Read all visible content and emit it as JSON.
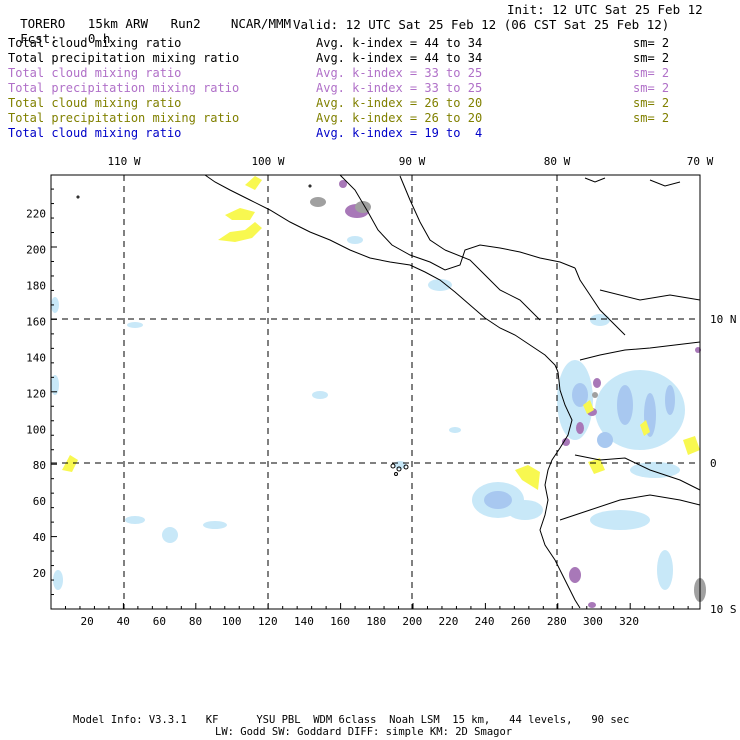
{
  "header": {
    "model": "TORERO",
    "resolution": "15km ARW",
    "run": "Run2",
    "org": "NCAR/MMM",
    "init": "Init: 12 UTC Sat 25 Feb 12",
    "fcst_label": "Fcst:",
    "fcst_value": "0 h",
    "valid": "Valid: 12 UTC Sat 25 Feb 12 (06 CST Sat 25 Feb 12)"
  },
  "legend": [
    {
      "field": "Total cloud mixing ratio",
      "kindex": "Avg. k-index = 44 to 34",
      "sm": "sm= 2",
      "color": "#000000"
    },
    {
      "field": "Total precipitation mixing ratio",
      "kindex": "Avg. k-index = 44 to 34",
      "sm": "sm= 2",
      "color": "#000000"
    },
    {
      "field": "Total cloud mixing ratio",
      "kindex": "Avg. k-index = 33 to 25",
      "sm": "sm= 2",
      "color": "#b070c8"
    },
    {
      "field": "Total precipitation mixing ratio",
      "kindex": "Avg. k-index = 33 to 25",
      "sm": "sm= 2",
      "color": "#b070c8"
    },
    {
      "field": "Total cloud mixing ratio",
      "kindex": "Avg. k-index = 26 to 20",
      "sm": "sm= 2",
      "color": "#808000"
    },
    {
      "field": "Total precipitation mixing ratio",
      "kindex": "Avg. k-index = 26 to 20",
      "sm": "sm= 2",
      "color": "#808000"
    },
    {
      "field": "Total cloud mixing ratio",
      "kindex": "Avg. k-index = 19 to  4",
      "sm": "",
      "color": "#0000c8"
    }
  ],
  "map": {
    "lon_labels": [
      "110 W",
      "100 W",
      "90 W",
      "80 W",
      "70 W"
    ],
    "lat_labels": [
      "10 N",
      "0",
      "10 S"
    ],
    "x_ticks": [
      "20",
      "40",
      "60",
      "80",
      "100",
      "120",
      "140",
      "160",
      "180",
      "200",
      "220",
      "240",
      "260",
      "280",
      "300",
      "320"
    ],
    "y_ticks": [
      "20",
      "40",
      "60",
      "80",
      "100",
      "120",
      "140",
      "160",
      "180",
      "200",
      "220"
    ],
    "colors": {
      "light_blue": "#c8e8f8",
      "mid_blue": "#a8c8f0",
      "purple": "#a878b8",
      "yellow": "#f8f850",
      "gray": "#a0a0a0"
    }
  },
  "footer": {
    "line1": "Model Info: V3.3.1   KF      YSU PBL  WDM 6class  Noah LSM  15 km,   44 levels,   90 sec",
    "line2": "LW: Godd SW: Goddard DIFF: simple KM: 2D Smagor"
  }
}
